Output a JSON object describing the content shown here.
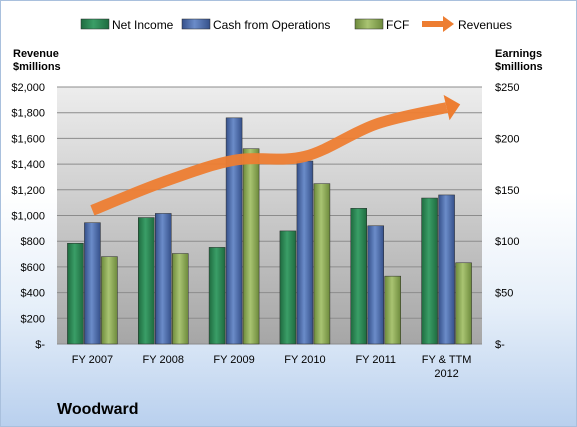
{
  "company": "Woodward",
  "chart_data": {
    "type": "bar",
    "categories": [
      "FY 2007",
      "FY 2008",
      "FY 2009",
      "FY 2010",
      "FY 2011",
      "FY & TTM 2012"
    ],
    "series": [
      {
        "name": "Net Income",
        "values": [
          98,
          123,
          94,
          110,
          132,
          142
        ],
        "axis": "right",
        "color": "#2e8b57"
      },
      {
        "name": "Cash from Operations",
        "values": [
          118,
          127,
          220,
          178,
          115,
          145
        ],
        "axis": "right",
        "color": "#4f6fb0"
      },
      {
        "name": "FCF",
        "values": [
          85,
          88,
          190,
          156,
          66,
          79
        ],
        "axis": "right",
        "color": "#8fad55"
      },
      {
        "name": "Revenues",
        "type": "line",
        "values": [
          1040,
          1260,
          1430,
          1460,
          1710,
          1840
        ],
        "axis": "left",
        "color": "#ed7d31"
      }
    ],
    "left_axis": {
      "label_line1": "Revenue",
      "label_line2": "$millions",
      "ylim": [
        0,
        2000
      ],
      "ticks": [
        0,
        200,
        400,
        600,
        800,
        1000,
        1200,
        1400,
        1600,
        1800,
        2000
      ],
      "tick_labels": [
        "$-",
        "$200",
        "$400",
        "$600",
        "$800",
        "$1,000",
        "$1,200",
        "$1,400",
        "$1,600",
        "$1,800",
        "$2,000"
      ]
    },
    "right_axis": {
      "label_line1": "Earnings",
      "label_line2": "$millions",
      "ylim": [
        0,
        250
      ],
      "ticks": [
        0,
        50,
        100,
        150,
        200,
        250
      ],
      "tick_labels": [
        "$-",
        "$50",
        "$100",
        "$150",
        "$200",
        "$250"
      ]
    },
    "x_tick_labels": [
      [
        "FY 2007"
      ],
      [
        "FY 2008"
      ],
      [
        "FY 2009"
      ],
      [
        "FY 2010"
      ],
      [
        "FY 2011"
      ],
      [
        "FY & TTM",
        "2012"
      ]
    ],
    "legend_position": "top",
    "grid": true
  }
}
